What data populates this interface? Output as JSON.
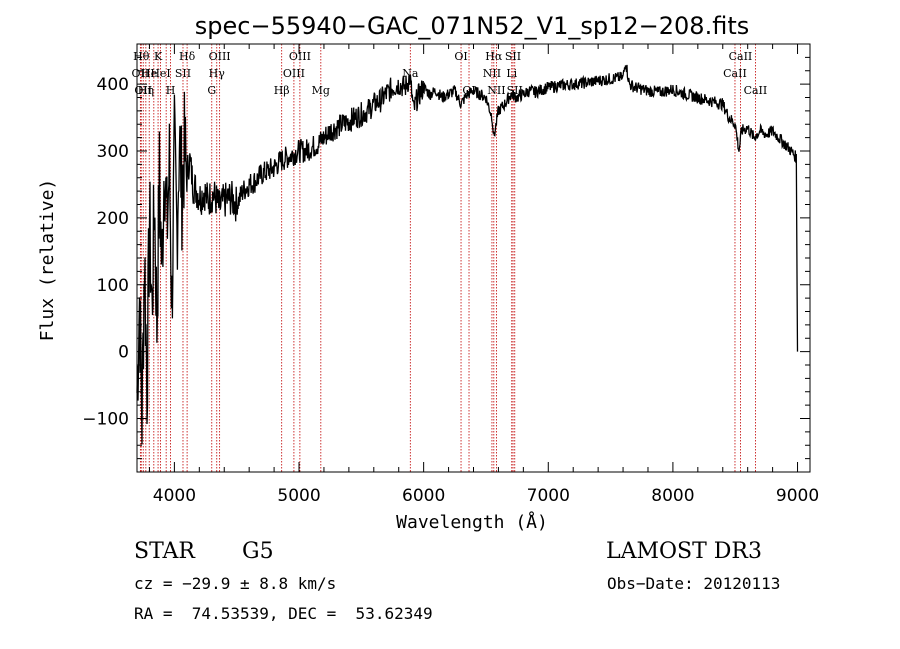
{
  "chart_data": {
    "type": "line",
    "title": "spec−55940−GAC_071N52_V1_sp12−208.fits",
    "xlabel": "Wavelength (Å)",
    "ylabel": "Flux (relative)",
    "xlim": [
      3700,
      9100
    ],
    "ylim": [
      -180,
      460
    ],
    "xticks": [
      4000,
      5000,
      6000,
      7000,
      8000,
      9000
    ],
    "yticks": [
      -100,
      0,
      100,
      200,
      300,
      400
    ],
    "ytick_labels": [
      "−100",
      "0",
      "100",
      "200",
      "300",
      "400"
    ],
    "grid": false,
    "series": [
      {
        "name": "flux",
        "x": [
          3700,
          3720,
          3740,
          3760,
          3780,
          3800,
          3820,
          3840,
          3860,
          3880,
          3900,
          3920,
          3940,
          3960,
          3980,
          4000,
          4020,
          4040,
          4060,
          4080,
          4100,
          4120,
          4150,
          4180,
          4210,
          4240,
          4270,
          4300,
          4330,
          4360,
          4400,
          4450,
          4500,
          4550,
          4600,
          4650,
          4700,
          4750,
          4800,
          4850,
          4900,
          4950,
          5000,
          5050,
          5100,
          5150,
          5200,
          5250,
          5300,
          5350,
          5400,
          5450,
          5500,
          5550,
          5600,
          5650,
          5700,
          5750,
          5800,
          5850,
          5890,
          5920,
          5950,
          6000,
          6050,
          6100,
          6150,
          6200,
          6250,
          6300,
          6350,
          6400,
          6450,
          6500,
          6550,
          6563,
          6600,
          6650,
          6700,
          6750,
          6800,
          6850,
          6900,
          6950,
          7000,
          7100,
          7200,
          7300,
          7400,
          7500,
          7600,
          7620,
          7650,
          7700,
          7800,
          7900,
          8000,
          8100,
          8200,
          8300,
          8400,
          8450,
          8500,
          8530,
          8550,
          8600,
          8650,
          8700,
          8750,
          8800,
          8850,
          8900,
          8950,
          8990,
          9000
        ],
        "values": [
          -60,
          80,
          -100,
          150,
          -50,
          200,
          60,
          230,
          40,
          260,
          120,
          300,
          180,
          280,
          70,
          300,
          180,
          320,
          240,
          300,
          260,
          290,
          250,
          240,
          230,
          240,
          225,
          235,
          230,
          215,
          225,
          230,
          220,
          240,
          250,
          255,
          265,
          270,
          275,
          285,
          290,
          295,
          300,
          300,
          305,
          310,
          320,
          330,
          335,
          340,
          345,
          350,
          355,
          360,
          370,
          375,
          385,
          395,
          400,
          395,
          410,
          360,
          380,
          395,
          385,
          390,
          380,
          385,
          390,
          370,
          385,
          390,
          385,
          380,
          350,
          320,
          360,
          370,
          385,
          380,
          385,
          390,
          388,
          392,
          395,
          398,
          400,
          402,
          405,
          408,
          410,
          435,
          400,
          395,
          390,
          388,
          392,
          385,
          380,
          375,
          370,
          350,
          340,
          300,
          330,
          335,
          320,
          330,
          325,
          330,
          320,
          310,
          300,
          290,
          0
        ]
      }
    ],
    "lines": [
      {
        "wl": 3734,
        "label": "Hθ",
        "row": 0
      },
      {
        "wl": 3727,
        "label": "OII",
        "row": 1
      },
      {
        "wl": 3750,
        "label": "OII",
        "row": 2
      },
      {
        "wl": 3771,
        "label": "Hη",
        "row": 2
      },
      {
        "wl": 3798,
        "label": "He",
        "row": 1
      },
      {
        "wl": 3835,
        "label": "",
        "row": -1
      },
      {
        "wl": 3869,
        "label": "K",
        "row": 0
      },
      {
        "wl": 3889,
        "label": "HeI",
        "row": 1
      },
      {
        "wl": 3934,
        "label": "",
        "row": -1
      },
      {
        "wl": 3969,
        "label": "H",
        "row": 2
      },
      {
        "wl": 4069,
        "label": "SII",
        "row": 1
      },
      {
        "wl": 4102,
        "label": "Hδ",
        "row": 0
      },
      {
        "wl": 4300,
        "label": "G",
        "row": 2
      },
      {
        "wl": 4340,
        "label": "Hγ",
        "row": 1
      },
      {
        "wl": 4363,
        "label": "OIII",
        "row": 0
      },
      {
        "wl": 4861,
        "label": "Hβ",
        "row": 2
      },
      {
        "wl": 4959,
        "label": "OIII",
        "row": 1
      },
      {
        "wl": 5007,
        "label": "OIII",
        "row": 0
      },
      {
        "wl": 5175,
        "label": "Mg",
        "row": 2
      },
      {
        "wl": 5893,
        "label": "Na",
        "row": 1
      },
      {
        "wl": 6300,
        "label": "OI",
        "row": 0
      },
      {
        "wl": 6364,
        "label": "OI",
        "row": 2
      },
      {
        "wl": 6548,
        "label": "NII",
        "row": 1
      },
      {
        "wl": 6563,
        "label": "Hα",
        "row": 0
      },
      {
        "wl": 6584,
        "label": "NII",
        "row": 2
      },
      {
        "wl": 6707,
        "label": "Li",
        "row": 1
      },
      {
        "wl": 6717,
        "label": "SII",
        "row": 0
      },
      {
        "wl": 6731,
        "label": "SII",
        "row": 2
      },
      {
        "wl": 8498,
        "label": "CaII",
        "row": 1
      },
      {
        "wl": 8542,
        "label": "CaII",
        "row": 0
      },
      {
        "wl": 8662,
        "label": "CaII",
        "row": 2
      }
    ],
    "colors": {
      "spectrum": "#000000",
      "line_marker": "#c00000",
      "axes": "#000000"
    }
  },
  "info": {
    "class": "STAR",
    "subclass": "G5",
    "survey": "LAMOST DR3",
    "cz": "cz = −29.9 ± 8.8 km/s",
    "obs_date": "Obs−Date: 20120113",
    "coords": "RA =  74.53539, DEC =  53.62349"
  }
}
